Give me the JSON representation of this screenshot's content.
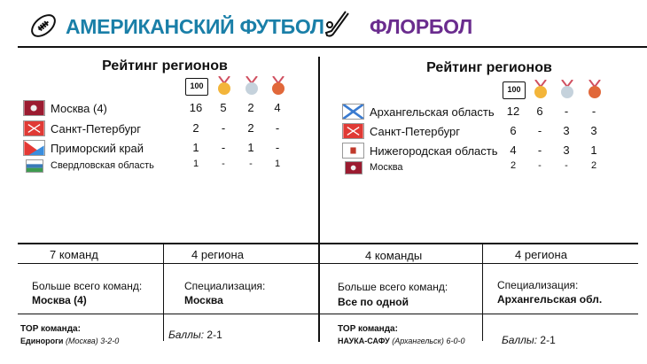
{
  "american_football": {
    "title": "АМЕРИКАНСКИЙ ФУТБОЛ",
    "title_color": "#1a7fa8",
    "icon": "football-icon",
    "rating_title": "Рейтинг регионов",
    "column_icons": [
      "points-100-icon",
      "gold-medal-icon",
      "silver-medal-icon",
      "bronze-medal-icon"
    ],
    "column_label": "100",
    "rows": [
      {
        "region": "Москва (4)",
        "flag": "moscow-flag-icon",
        "values": [
          "16",
          "5",
          "2",
          "4"
        ]
      },
      {
        "region": "Санкт-Петербург",
        "flag": "spb-flag-icon",
        "values": [
          "2",
          "-",
          "2",
          "-"
        ]
      },
      {
        "region": "Приморский край",
        "flag": "primorsky-flag-icon",
        "values": [
          "1",
          "-",
          "1",
          "-"
        ]
      },
      {
        "region": "Свердловская область",
        "flag": "sverdlovsk-flag-icon",
        "values": [
          "1",
          "-",
          "-",
          "1"
        ]
      }
    ],
    "teams": "7 команд",
    "regions": "4 региона",
    "most_teams_label": "Больше всего команд:",
    "most_teams_value": "Москва (4)",
    "specialization_label": "Специализация:",
    "specialization_value": "Москва",
    "top_team_label": "TOP команда:",
    "top_team_name": "Единороги",
    "top_team_city": "(Москва)",
    "top_team_record": "3-2-0",
    "points_label": "Баллы:",
    "points_value": "2-1"
  },
  "floorball": {
    "title": "ФЛОРБОЛ",
    "title_color": "#6a2c8e",
    "icon": "floorball-stick-icon",
    "rating_title": "Рейтинг регионов",
    "column_label": "100",
    "rows": [
      {
        "region": "Архангельская область",
        "flag": "arkhangelsk-flag-icon",
        "values": [
          "12",
          "6",
          "-",
          "-"
        ]
      },
      {
        "region": "Санкт-Петербург",
        "flag": "spb-flag-icon",
        "values": [
          "6",
          "-",
          "3",
          "3"
        ]
      },
      {
        "region": "Нижегородская область",
        "flag": "nizhny-flag-icon",
        "values": [
          "4",
          "-",
          "3",
          "1"
        ]
      },
      {
        "region": "Москва",
        "flag": "moscow-flag-icon",
        "values": [
          "2",
          "-",
          "-",
          "2"
        ]
      }
    ],
    "teams": "4 команды",
    "regions": "4 региона",
    "most_teams_label": "Больше всего команд:",
    "most_teams_value": "Все по одной",
    "specialization_label": "Специализация:",
    "specialization_value": "Архангельская обл.",
    "top_team_label": "TOP команда:",
    "top_team_name": "НАУКА-САФУ",
    "top_team_city": "(Архангельск)",
    "top_team_record": "6-0-0",
    "points_label": "Баллы:",
    "points_value": "2-1"
  }
}
